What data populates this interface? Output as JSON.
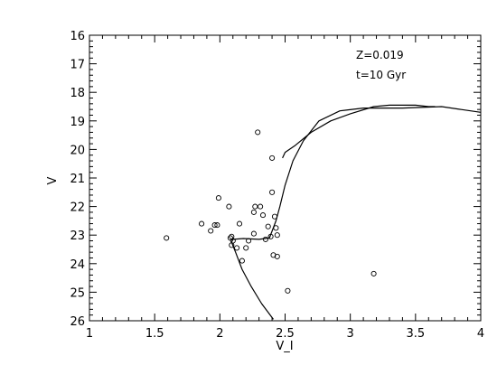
{
  "chart_data": {
    "type": "scatter",
    "title": "",
    "xlabel": "V_I",
    "ylabel": "V",
    "xlim": [
      1,
      4
    ],
    "ylim": [
      26,
      16
    ],
    "y_inverted": true,
    "grid": false,
    "x_ticks": [
      1,
      1.5,
      2,
      2.5,
      3,
      3.5,
      4
    ],
    "x_tick_labels": [
      "1",
      "1.5",
      "2",
      "2.5",
      "3",
      "3.5",
      "4"
    ],
    "y_ticks": [
      16,
      17,
      18,
      19,
      20,
      21,
      22,
      23,
      24,
      25,
      26
    ],
    "y_tick_labels": [
      "16",
      "17",
      "18",
      "19",
      "20",
      "21",
      "22",
      "23",
      "24",
      "25",
      "26"
    ],
    "annotations": [
      "Z=0.019",
      "t=10 Gyr"
    ],
    "series": [
      {
        "kind": "points",
        "marker": "open-circle",
        "points": [
          [
            1.59,
            23.1
          ],
          [
            1.86,
            22.6
          ],
          [
            1.93,
            22.85
          ],
          [
            1.96,
            22.65
          ],
          [
            1.98,
            22.65
          ],
          [
            1.99,
            21.7
          ],
          [
            2.07,
            22.0
          ],
          [
            2.08,
            23.1
          ],
          [
            2.09,
            23.05
          ],
          [
            2.09,
            23.35
          ],
          [
            2.1,
            23.2
          ],
          [
            2.13,
            23.45
          ],
          [
            2.15,
            22.6
          ],
          [
            2.17,
            23.9
          ],
          [
            2.2,
            23.45
          ],
          [
            2.22,
            23.2
          ],
          [
            2.26,
            22.95
          ],
          [
            2.26,
            22.2
          ],
          [
            2.27,
            22.0
          ],
          [
            2.29,
            19.4
          ],
          [
            2.31,
            22.0
          ],
          [
            2.33,
            22.3
          ],
          [
            2.35,
            23.15
          ],
          [
            2.37,
            22.7
          ],
          [
            2.39,
            23.05
          ],
          [
            2.4,
            20.3
          ],
          [
            2.4,
            21.5
          ],
          [
            2.42,
            22.35
          ],
          [
            2.43,
            22.75
          ],
          [
            2.41,
            23.7
          ],
          [
            2.44,
            23.0
          ],
          [
            2.44,
            23.75
          ],
          [
            2.52,
            24.95
          ],
          [
            3.18,
            24.35
          ]
        ]
      },
      {
        "kind": "line",
        "points": [
          [
            2.41,
            25.95
          ],
          [
            2.32,
            25.4
          ],
          [
            2.24,
            24.8
          ],
          [
            2.17,
            24.2
          ],
          [
            2.12,
            23.6
          ],
          [
            2.09,
            23.25
          ],
          [
            2.1,
            23.15
          ],
          [
            2.18,
            23.12
          ],
          [
            2.3,
            23.15
          ],
          [
            2.38,
            23.1
          ],
          [
            2.43,
            22.5
          ],
          [
            2.46,
            22.0
          ],
          [
            2.5,
            21.25
          ],
          [
            2.56,
            20.4
          ],
          [
            2.64,
            19.7
          ],
          [
            2.76,
            19.0
          ],
          [
            2.92,
            18.65
          ],
          [
            3.1,
            18.55
          ],
          [
            3.4,
            18.55
          ],
          [
            3.7,
            18.5
          ],
          [
            3.85,
            18.6
          ],
          [
            4.0,
            18.7
          ]
        ]
      },
      {
        "kind": "line",
        "points": [
          [
            2.48,
            20.3
          ],
          [
            2.5,
            20.1
          ],
          [
            2.58,
            19.85
          ],
          [
            2.7,
            19.4
          ],
          [
            2.85,
            19.0
          ],
          [
            3.0,
            18.75
          ],
          [
            3.18,
            18.5
          ],
          [
            3.3,
            18.45
          ],
          [
            3.5,
            18.45
          ],
          [
            3.6,
            18.5
          ],
          [
            3.65,
            18.5
          ]
        ]
      }
    ]
  }
}
